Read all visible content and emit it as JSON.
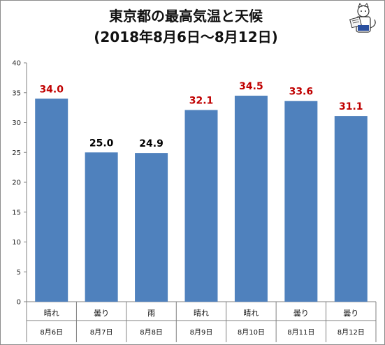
{
  "chart_data": {
    "type": "bar",
    "title": "東京都の最高気温と天候",
    "subtitle": "(2018年8月6日～8月12日)",
    "categories": [
      "晴れ",
      "曇り",
      "雨",
      "晴れ",
      "晴れ",
      "曇り",
      "曇り"
    ],
    "dates": [
      "8月6日",
      "8月7日",
      "8月8日",
      "8月9日",
      "8月10日",
      "8月11日",
      "8月12日"
    ],
    "values": [
      34.0,
      25.0,
      24.9,
      32.1,
      34.5,
      33.6,
      31.1
    ],
    "data_labels": [
      "34.0",
      "25.0",
      "24.9",
      "32.1",
      "34.5",
      "33.6",
      "31.1"
    ],
    "ylim": [
      0,
      40
    ],
    "yticks": [
      0,
      5,
      10,
      15,
      20,
      25,
      30,
      35,
      40
    ],
    "xlabel": "",
    "ylabel": "",
    "grid": false,
    "legend": false,
    "colors": {
      "bar": "#4f81bd",
      "label_hot": "#c00000",
      "label_normal": "#000000",
      "axis": "#808080"
    },
    "label_colors": [
      "label_hot",
      "label_normal",
      "label_normal",
      "label_hot",
      "label_hot",
      "label_hot",
      "label_hot"
    ]
  },
  "logo": {
    "icon": "cat-reading-newspaper-icon"
  }
}
